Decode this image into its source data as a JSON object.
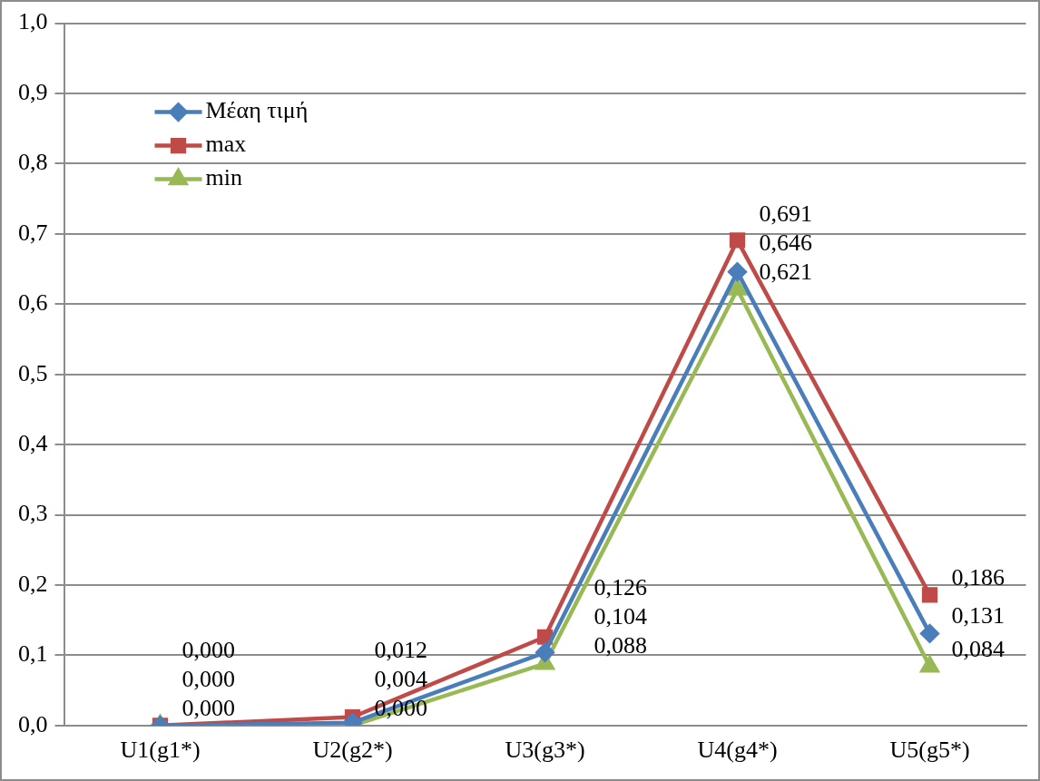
{
  "chart_data": {
    "type": "line",
    "categories": [
      "U1(g1*)",
      "U2(g2*)",
      "U3(g3*)",
      "U4(g4*)",
      "U5(g5*)"
    ],
    "series": [
      {
        "name": "Μέαη τιμή",
        "color": "#4a7ebb",
        "marker": "diamond",
        "values": [
          0,
          0.004,
          0.104,
          0.646,
          0.131
        ],
        "value_labels": [
          "0,000",
          "0,004",
          "0,104",
          "0,646",
          "0,131"
        ]
      },
      {
        "name": "max",
        "color": "#be4b48",
        "marker": "square",
        "values": [
          0,
          0.012,
          0.126,
          0.691,
          0.186
        ],
        "value_labels": [
          "0,000",
          "0,012",
          "0,126",
          "0,691",
          "0,186"
        ]
      },
      {
        "name": "min",
        "color": "#98b954",
        "marker": "triangle",
        "values": [
          0,
          0,
          0.088,
          0.621,
          0.084
        ],
        "value_labels": [
          "0,000",
          "0,000",
          "0,088",
          "0,621",
          "0,084"
        ]
      }
    ],
    "ylim": [
      0,
      1
    ],
    "yticks": [
      {
        "value": 0,
        "label": "0,0"
      },
      {
        "value": 0.1,
        "label": "0,1"
      },
      {
        "value": 0.2,
        "label": "0,2"
      },
      {
        "value": 0.3,
        "label": "0,3"
      },
      {
        "value": 0.4,
        "label": "0,4"
      },
      {
        "value": 0.5,
        "label": "0,5"
      },
      {
        "value": 0.6,
        "label": "0,6"
      },
      {
        "value": 0.7,
        "label": "0,7"
      },
      {
        "value": 0.8,
        "label": "0,8"
      },
      {
        "value": 0.9,
        "label": "0,9"
      },
      {
        "value": 1,
        "label": "1,0"
      }
    ],
    "grid": "y",
    "legend": "top left",
    "line_style": "solid"
  }
}
